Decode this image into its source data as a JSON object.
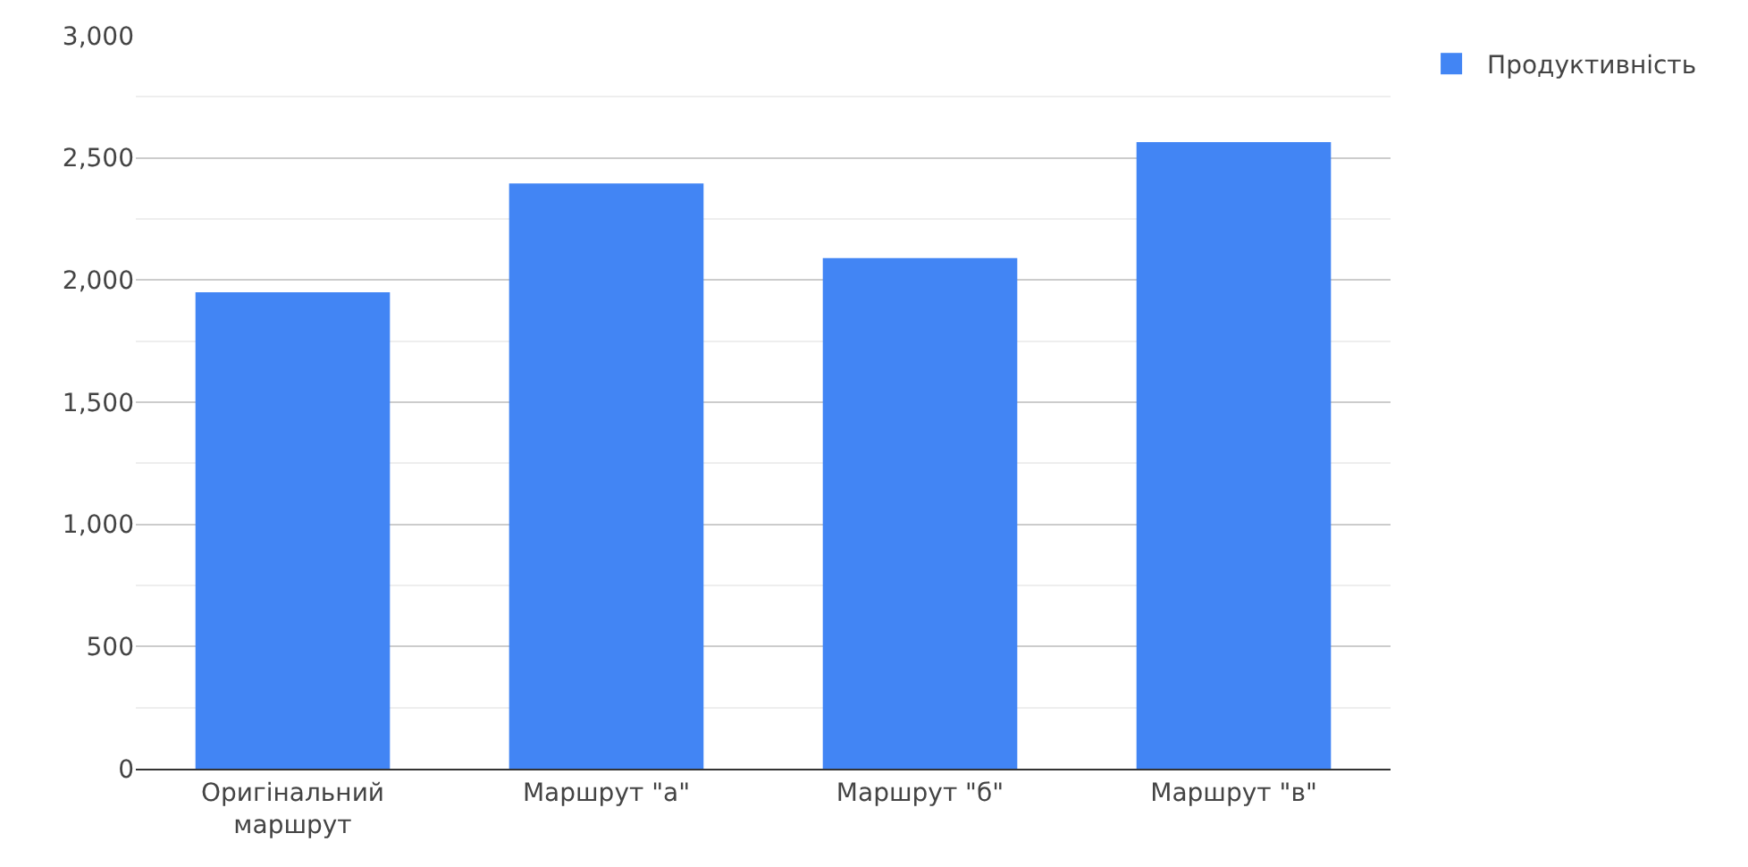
{
  "chart_data": {
    "type": "bar",
    "categories": [
      "Оригінальний маршрут",
      "Маршрут \"а\"",
      "Маршрут \"б\"",
      "Маршрут \"в\""
    ],
    "series": [
      {
        "name": "Продуктивність",
        "color": "#4285f4",
        "values": [
          1950,
          2395,
          2090,
          2565
        ]
      }
    ],
    "ylim": [
      0,
      3000
    ],
    "yticks": [
      {
        "value": 0,
        "label": "0"
      },
      {
        "value": 500,
        "label": "500"
      },
      {
        "value": 1000,
        "label": "1,000"
      },
      {
        "value": 1500,
        "label": "1,500"
      },
      {
        "value": 2000,
        "label": "2,000"
      },
      {
        "value": 2500,
        "label": "2,500"
      },
      {
        "value": 3000,
        "label": "3,000"
      }
    ],
    "grid": "y",
    "legend": "top right"
  }
}
